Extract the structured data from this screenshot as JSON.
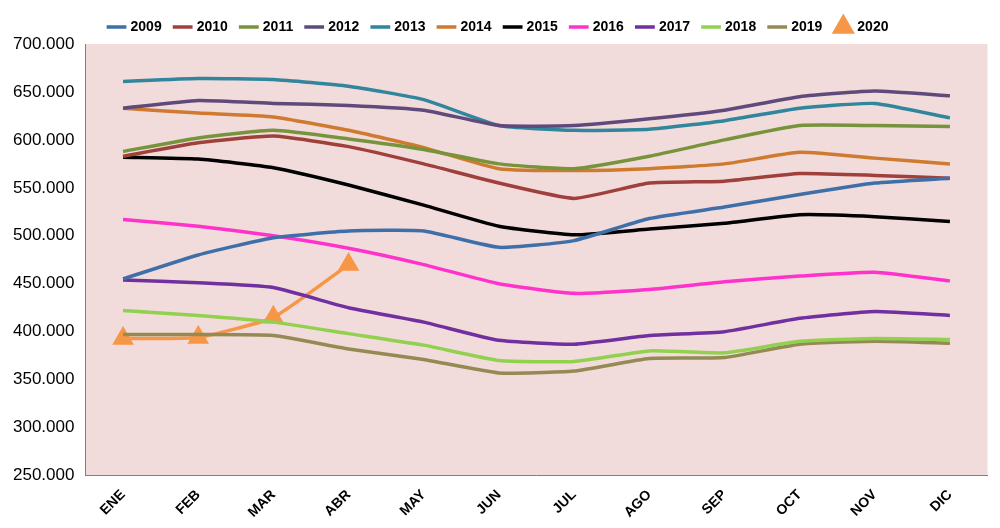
{
  "chart_data": {
    "type": "line",
    "categories": [
      "ENE",
      "FEB",
      "MAR",
      "ABR",
      "MAY",
      "JUN",
      "JUL",
      "AGO",
      "SEP",
      "OCT",
      "NOV",
      "DIC"
    ],
    "series": [
      {
        "name": "2009",
        "color": "#3e6fa8",
        "values": [
          455000,
          480000,
          498000,
          505000,
          505000,
          488000,
          495000,
          518000,
          530000,
          543000,
          555000,
          560000
        ]
      },
      {
        "name": "2010",
        "color": "#a0403c",
        "values": [
          583000,
          597000,
          604000,
          593000,
          575000,
          555000,
          539000,
          555000,
          557000,
          565000,
          563000,
          560000
        ]
      },
      {
        "name": "2011",
        "color": "#77933c",
        "values": [
          588000,
          602000,
          610000,
          601000,
          590000,
          575000,
          570000,
          583000,
          600000,
          615000,
          615000,
          614000
        ]
      },
      {
        "name": "2012",
        "color": "#604a7b",
        "values": [
          633000,
          641000,
          638000,
          636000,
          631000,
          615000,
          615000,
          622000,
          631000,
          645000,
          651000,
          646000
        ]
      },
      {
        "name": "2013",
        "color": "#31859c",
        "values": [
          661000,
          664000,
          663000,
          656000,
          642000,
          615000,
          610000,
          611000,
          620000,
          633000,
          638000,
          623000
        ]
      },
      {
        "name": "2014",
        "color": "#d07a2f",
        "values": [
          633000,
          628000,
          624000,
          610000,
          592000,
          570000,
          568000,
          570000,
          575000,
          587000,
          581000,
          575000
        ]
      },
      {
        "name": "2015",
        "color": "#000000",
        "values": [
          582000,
          580000,
          571000,
          553000,
          532000,
          510000,
          501000,
          507000,
          513000,
          522000,
          520000,
          515000
        ]
      },
      {
        "name": "2016",
        "color": "#ff33cc",
        "values": [
          517000,
          510000,
          500000,
          487000,
          470000,
          450000,
          440000,
          444000,
          452000,
          458000,
          462000,
          453000
        ]
      },
      {
        "name": "2017",
        "color": "#7030a0",
        "values": [
          454000,
          451000,
          446000,
          425000,
          410000,
          391000,
          387000,
          396000,
          400000,
          414000,
          421000,
          417000
        ]
      },
      {
        "name": "2018",
        "color": "#92d050",
        "values": [
          422000,
          417000,
          410000,
          398000,
          386000,
          370000,
          369000,
          380000,
          378000,
          390000,
          393000,
          392000
        ]
      },
      {
        "name": "2019",
        "color": "#948a54",
        "values": [
          397000,
          397000,
          396000,
          382000,
          371000,
          357000,
          359000,
          372000,
          373000,
          387000,
          390000,
          388000
        ]
      },
      {
        "name": "2020",
        "color": "#f79646",
        "marker": "triangle",
        "values": [
          393000,
          394000,
          415000,
          470000,
          null,
          null,
          null,
          null,
          null,
          null,
          null,
          null
        ]
      }
    ],
    "ylim": [
      250000,
      700000
    ],
    "yticks": [
      {
        "value": 250000,
        "label": "250.000"
      },
      {
        "value": 300000,
        "label": "300.000"
      },
      {
        "value": 350000,
        "label": "350.000"
      },
      {
        "value": 400000,
        "label": "400.000"
      },
      {
        "value": 450000,
        "label": "450.000"
      },
      {
        "value": 500000,
        "label": "500.000"
      },
      {
        "value": 550000,
        "label": "550.000"
      },
      {
        "value": 600000,
        "label": "600.000"
      },
      {
        "value": 650000,
        "label": "650.000"
      },
      {
        "value": 700000,
        "label": "700.000"
      }
    ],
    "grid": false,
    "legend": "top"
  }
}
